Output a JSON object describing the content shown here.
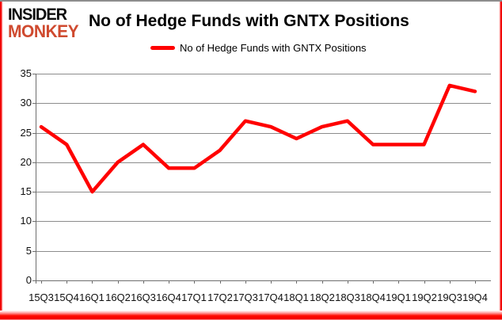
{
  "header": {
    "logo_line1": "INSIDER",
    "logo_line2": "MONKEY",
    "title": "No of Hedge Funds with GNTX Positions"
  },
  "legend": {
    "label": "No of Hedge Funds with GNTX Positions"
  },
  "colors": {
    "series_line": "#ff0000",
    "logo_accent": "#cf4a2f",
    "gridline": "#8c8c8c",
    "axis": "#6e6e6e",
    "frame_red": "#ff0000",
    "frame_top_gray": "#8d8d8d",
    "text": "#000000"
  },
  "chart_data": {
    "type": "line",
    "title": "No of Hedge Funds with GNTX Positions",
    "categories": [
      "15Q3",
      "15Q4",
      "16Q1",
      "16Q2",
      "16Q3",
      "16Q4",
      "17Q1",
      "17Q2",
      "17Q3",
      "17Q4",
      "18Q1",
      "18Q2",
      "18Q3",
      "18Q4",
      "19Q1",
      "19Q2",
      "19Q3",
      "19Q4"
    ],
    "series": [
      {
        "name": "No of Hedge Funds with GNTX Positions",
        "color": "#ff0000",
        "values": [
          26,
          23,
          15,
          20,
          23,
          19,
          19,
          22,
          27,
          26,
          24,
          26,
          27,
          23,
          23,
          23,
          33,
          32
        ]
      }
    ],
    "xlabel": "",
    "ylabel": "",
    "ylim": [
      0,
      35
    ],
    "y_ticks": [
      0,
      5,
      10,
      15,
      20,
      25,
      30,
      35
    ],
    "grid": true,
    "legend_position": "top-center"
  }
}
